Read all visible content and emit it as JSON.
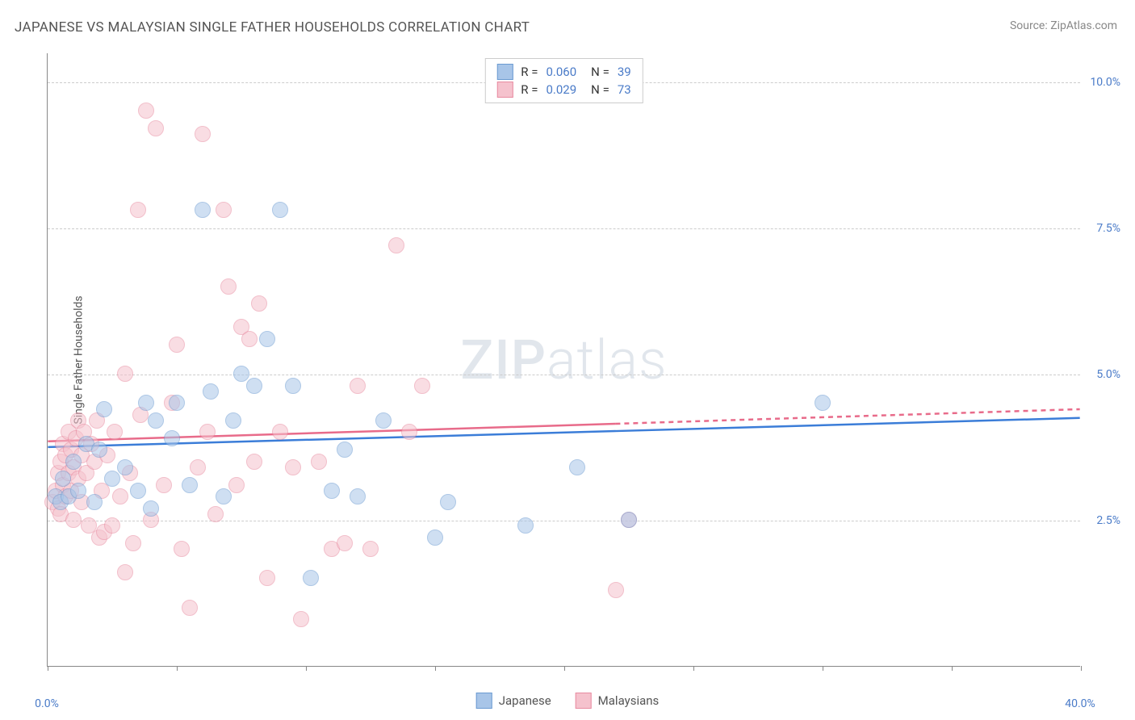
{
  "title": "JAPANESE VS MALAYSIAN SINGLE FATHER HOUSEHOLDS CORRELATION CHART",
  "source_prefix": "Source: ",
  "source_name": "ZipAtlas.com",
  "y_axis_label": "Single Father Households",
  "chart": {
    "type": "scatter",
    "background_color": "#ffffff",
    "grid_color": "#cccccc",
    "axis_color": "#888888",
    "xlim": [
      0,
      40
    ],
    "ylim": [
      0,
      10.5
    ],
    "x_ticks": [
      0,
      5,
      10,
      15,
      20,
      25,
      30,
      35,
      40
    ],
    "x_tick_labels": {
      "0": "0.0%",
      "40": "40.0%"
    },
    "y_gridlines": [
      2.5,
      5.0,
      7.5,
      10.0
    ],
    "y_tick_labels": {
      "2.5": "2.5%",
      "5.0": "5.0%",
      "7.5": "7.5%",
      "10.0": "10.0%"
    },
    "point_radius": 10,
    "point_opacity": 0.55,
    "series": {
      "japanese": {
        "label": "Japanese",
        "fill_color": "#a8c5e8",
        "stroke_color": "#6b9bd1",
        "trend_color": "#3b7dd8",
        "R": "0.060",
        "N": "39",
        "trend_x_range": [
          0,
          40
        ],
        "trend_y_range": [
          3.75,
          4.25
        ],
        "points": [
          [
            0.3,
            2.9
          ],
          [
            0.5,
            2.8
          ],
          [
            0.6,
            3.2
          ],
          [
            0.8,
            2.9
          ],
          [
            1.0,
            3.5
          ],
          [
            1.2,
            3.0
          ],
          [
            1.5,
            3.8
          ],
          [
            1.8,
            2.8
          ],
          [
            2.0,
            3.7
          ],
          [
            2.2,
            4.4
          ],
          [
            2.5,
            3.2
          ],
          [
            3.0,
            3.4
          ],
          [
            3.5,
            3.0
          ],
          [
            3.8,
            4.5
          ],
          [
            4.0,
            2.7
          ],
          [
            4.2,
            4.2
          ],
          [
            4.8,
            3.9
          ],
          [
            5.0,
            4.5
          ],
          [
            5.5,
            3.1
          ],
          [
            6.0,
            7.8
          ],
          [
            6.3,
            4.7
          ],
          [
            6.8,
            2.9
          ],
          [
            7.2,
            4.2
          ],
          [
            7.5,
            5.0
          ],
          [
            8.0,
            4.8
          ],
          [
            8.5,
            5.6
          ],
          [
            9.0,
            7.8
          ],
          [
            9.5,
            4.8
          ],
          [
            10.2,
            1.5
          ],
          [
            11.0,
            3.0
          ],
          [
            11.5,
            3.7
          ],
          [
            12.0,
            2.9
          ],
          [
            13.0,
            4.2
          ],
          [
            15.0,
            2.2
          ],
          [
            15.5,
            2.8
          ],
          [
            18.5,
            2.4
          ],
          [
            20.5,
            3.4
          ],
          [
            22.5,
            2.5
          ],
          [
            30.0,
            4.5
          ]
        ]
      },
      "malaysians": {
        "label": "Malaysians",
        "fill_color": "#f5c2cd",
        "stroke_color": "#e88ba0",
        "trend_color": "#e86b8a",
        "R": "0.029",
        "N": "73",
        "trend_x_solid_range": [
          0,
          22
        ],
        "trend_y_solid_range": [
          3.85,
          4.15
        ],
        "trend_x_dash_range": [
          22,
          40
        ],
        "trend_y_dash_range": [
          4.15,
          4.4
        ],
        "points": [
          [
            0.2,
            2.8
          ],
          [
            0.3,
            3.0
          ],
          [
            0.4,
            2.7
          ],
          [
            0.4,
            3.3
          ],
          [
            0.5,
            2.6
          ],
          [
            0.5,
            3.5
          ],
          [
            0.6,
            3.1
          ],
          [
            0.6,
            3.8
          ],
          [
            0.7,
            2.9
          ],
          [
            0.7,
            3.6
          ],
          [
            0.8,
            3.3
          ],
          [
            0.8,
            4.0
          ],
          [
            0.9,
            3.0
          ],
          [
            0.9,
            3.7
          ],
          [
            1.0,
            2.5
          ],
          [
            1.0,
            3.4
          ],
          [
            1.1,
            3.9
          ],
          [
            1.2,
            3.2
          ],
          [
            1.2,
            4.2
          ],
          [
            1.3,
            2.8
          ],
          [
            1.3,
            3.6
          ],
          [
            1.4,
            4.0
          ],
          [
            1.5,
            3.3
          ],
          [
            1.6,
            2.4
          ],
          [
            1.7,
            3.8
          ],
          [
            1.8,
            3.5
          ],
          [
            1.9,
            4.2
          ],
          [
            2.0,
            2.2
          ],
          [
            2.1,
            3.0
          ],
          [
            2.2,
            2.3
          ],
          [
            2.3,
            3.6
          ],
          [
            2.5,
            2.4
          ],
          [
            2.6,
            4.0
          ],
          [
            2.8,
            2.9
          ],
          [
            3.0,
            5.0
          ],
          [
            3.0,
            1.6
          ],
          [
            3.2,
            3.3
          ],
          [
            3.3,
            2.1
          ],
          [
            3.5,
            7.8
          ],
          [
            3.6,
            4.3
          ],
          [
            3.8,
            9.5
          ],
          [
            4.0,
            2.5
          ],
          [
            4.2,
            9.2
          ],
          [
            4.5,
            3.1
          ],
          [
            4.8,
            4.5
          ],
          [
            5.0,
            5.5
          ],
          [
            5.2,
            2.0
          ],
          [
            5.5,
            1.0
          ],
          [
            5.8,
            3.4
          ],
          [
            6.0,
            9.1
          ],
          [
            6.2,
            4.0
          ],
          [
            6.5,
            2.6
          ],
          [
            6.8,
            7.8
          ],
          [
            7.0,
            6.5
          ],
          [
            7.3,
            3.1
          ],
          [
            7.5,
            5.8
          ],
          [
            7.8,
            5.6
          ],
          [
            8.0,
            3.5
          ],
          [
            8.2,
            6.2
          ],
          [
            8.5,
            1.5
          ],
          [
            9.0,
            4.0
          ],
          [
            9.5,
            3.4
          ],
          [
            9.8,
            0.8
          ],
          [
            10.5,
            3.5
          ],
          [
            11.0,
            2.0
          ],
          [
            11.5,
            2.1
          ],
          [
            12.0,
            4.8
          ],
          [
            12.5,
            2.0
          ],
          [
            13.5,
            7.2
          ],
          [
            14.0,
            4.0
          ],
          [
            14.5,
            4.8
          ],
          [
            22.0,
            1.3
          ],
          [
            22.5,
            2.5
          ]
        ]
      }
    }
  },
  "legend_top": {
    "R_label": "R =",
    "N_label": "N ="
  },
  "watermark": {
    "zip": "ZIP",
    "atlas": "atlas"
  }
}
